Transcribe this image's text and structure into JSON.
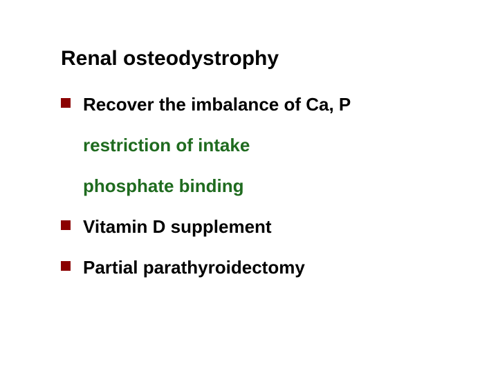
{
  "slide": {
    "title": "Renal osteodystrophy",
    "title_fontsize": 30,
    "title_color": "#000000",
    "background_color": "#ffffff",
    "bullet_marker_color": "#8b0000",
    "bullet_marker_size": 14,
    "items": [
      {
        "text": "Recover the imbalance of Ca, P",
        "color": "#000000",
        "has_bullet": true
      },
      {
        "text": "restriction of intake",
        "color": "#1f6b1f",
        "has_bullet": false
      },
      {
        "text": "phosphate binding",
        "color": "#1f6b1f",
        "has_bullet": false
      },
      {
        "text": "Vitamin D supplement",
        "color": "#000000",
        "has_bullet": true
      },
      {
        "text": "Partial parathyroidectomy",
        "color": "#000000",
        "has_bullet": true
      }
    ],
    "body_fontsize": 26,
    "body_fontweight": "bold"
  }
}
